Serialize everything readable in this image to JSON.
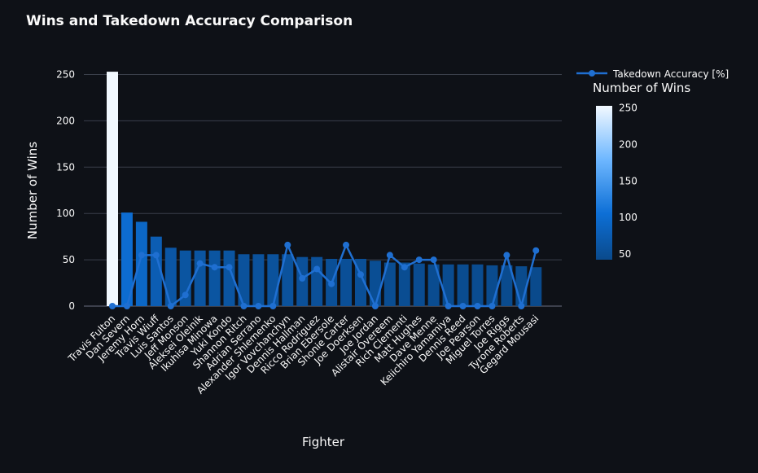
{
  "chart_data": {
    "type": "bar",
    "title": "Wins and Takedown Accuracy Comparison",
    "xlabel": "Fighter",
    "ylabel": "Number of Wins",
    "ylim": [
      0,
      275
    ],
    "yticks": [
      0,
      50,
      100,
      150,
      200,
      250
    ],
    "grid": true,
    "legend_position": "top-right",
    "categories": [
      "Travis Fulton",
      "Dan Severn",
      "Jeremy Horn",
      "Travis Wiuff",
      "Luis Santos",
      "Jeff Monson",
      "Aleksei Oleinik",
      "Ikuhisa Minowa",
      "Yuki Kondo",
      "Shannon Ritch",
      "Adrian Serrano",
      "Alexander Shlemenko",
      "Igor Vovchanchyn",
      "Dennis Hallman",
      "Ricco Rodriguez",
      "Brian Ebersole",
      "Shonie Carter",
      "Joe Doerksen",
      "Joe Jordan",
      "Alistair Overeem",
      "Rich Clementi",
      "Matt Hughes",
      "Dave Menne",
      "Keiichiro Yamamiya",
      "Dennis Reed",
      "Joe Pearson",
      "Miguel Torres",
      "Joe Riggs",
      "Tyrone Roberts",
      "Gegard Mousasi"
    ],
    "series": [
      {
        "name": "Number of Wins",
        "kind": "bar",
        "values": [
          253,
          101,
          91,
          75,
          63,
          60,
          60,
          60,
          60,
          56,
          56,
          56,
          56,
          53,
          53,
          51,
          51,
          51,
          49,
          47,
          47,
          46,
          45,
          45,
          45,
          45,
          44,
          44,
          43,
          42
        ]
      },
      {
        "name": "Takedown Accuracy [%]",
        "kind": "line",
        "color": "#1f6fd1",
        "values": [
          0,
          0,
          55,
          55,
          0,
          12,
          46,
          42,
          42,
          0,
          0,
          0,
          66,
          30,
          40,
          24,
          66,
          34,
          0,
          55,
          42,
          50,
          50,
          0,
          0,
          0,
          0,
          55,
          0,
          60
        ]
      }
    ],
    "colorbar": {
      "title": "Number of Wins",
      "ticks": [
        50,
        100,
        150,
        200,
        250
      ],
      "range": [
        42,
        253
      ],
      "colors": [
        "#0a4a8c",
        "#0d6fd6",
        "#6eb7ff",
        "#f2f9ff"
      ]
    },
    "colors": {
      "background": "#0e1117",
      "grid": "#3a3f4b",
      "text": "#fafafa"
    }
  }
}
